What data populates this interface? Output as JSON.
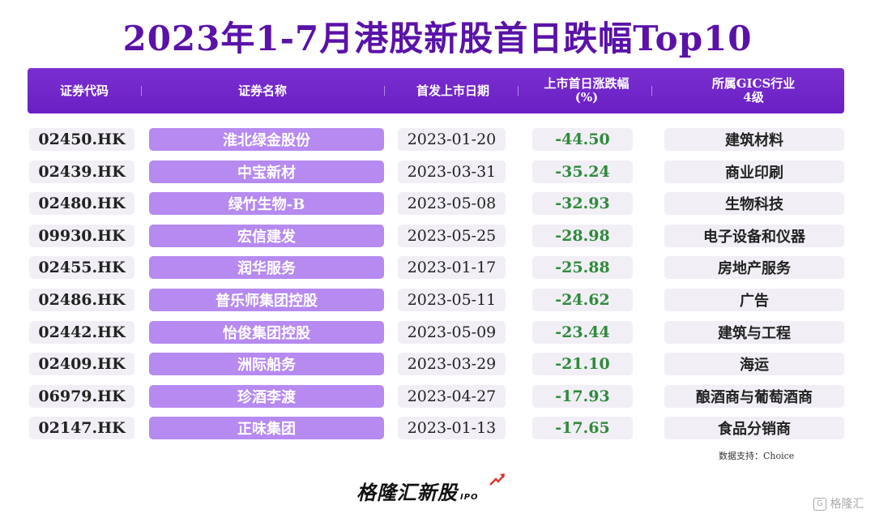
{
  "title": "2023年1-7月港股新股首日跌幅Top10",
  "header": {
    "code": "证券代码",
    "name": "证券名称",
    "date": "首发上市日期",
    "change_l1": "上市首日涨跌幅",
    "change_l2": "(%)",
    "industry_l1": "所属GICS行业",
    "industry_l2": "4级"
  },
  "rows": [
    {
      "code": "02450.HK",
      "name": "淮北绿金股份",
      "date": "2023-01-20",
      "change": "-44.50",
      "industry": "建筑材料"
    },
    {
      "code": "02439.HK",
      "name": "中宝新材",
      "date": "2023-03-31",
      "change": "-35.24",
      "industry": "商业印刷"
    },
    {
      "code": "02480.HK",
      "name": "绿竹生物-B",
      "date": "2023-05-08",
      "change": "-32.93",
      "industry": "生物科技"
    },
    {
      "code": "09930.HK",
      "name": "宏信建发",
      "date": "2023-05-25",
      "change": "-28.98",
      "industry": "电子设备和仪器"
    },
    {
      "code": "02455.HK",
      "name": "润华服务",
      "date": "2023-01-17",
      "change": "-25.88",
      "industry": "房地产服务"
    },
    {
      "code": "02486.HK",
      "name": "普乐师集团控股",
      "date": "2023-05-11",
      "change": "-24.62",
      "industry": "广告"
    },
    {
      "code": "02442.HK",
      "name": "怡俊集团控股",
      "date": "2023-05-09",
      "change": "-23.44",
      "industry": "建筑与工程"
    },
    {
      "code": "02409.HK",
      "name": "洲际船务",
      "date": "2023-03-29",
      "change": "-21.10",
      "industry": "海运"
    },
    {
      "code": "06979.HK",
      "name": "珍酒李渡",
      "date": "2023-04-27",
      "change": "-17.93",
      "industry": "酿酒商与葡萄酒商"
    },
    {
      "code": "02147.HK",
      "name": "正味集团",
      "date": "2023-01-13",
      "change": "-17.65",
      "industry": "食品分销商"
    }
  ],
  "source": "数据支持：Choice",
  "logo": {
    "text": "格隆汇新股",
    "suffix": "IPO"
  },
  "watermark": "格隆汇",
  "colors": {
    "header_bg": "#6a1fc4",
    "title": "#5a12a8",
    "name_pill": "#b68af0",
    "negative": "#2f8a3c"
  },
  "chart_data": {
    "type": "table",
    "title": "2023年1-7月港股新股首日跌幅Top10",
    "columns": [
      "证券代码",
      "证券名称",
      "首发上市日期",
      "上市首日涨跌幅(%)",
      "所属GICS行业4级"
    ],
    "categories": [
      "淮北绿金股份",
      "中宝新材",
      "绿竹生物-B",
      "宏信建发",
      "润华服务",
      "普乐师集团控股",
      "怡俊集团控股",
      "洲际船务",
      "珍酒李渡",
      "正味集团"
    ],
    "values": [
      -44.5,
      -35.24,
      -32.93,
      -28.98,
      -25.88,
      -24.62,
      -23.44,
      -21.1,
      -17.93,
      -17.65
    ]
  }
}
